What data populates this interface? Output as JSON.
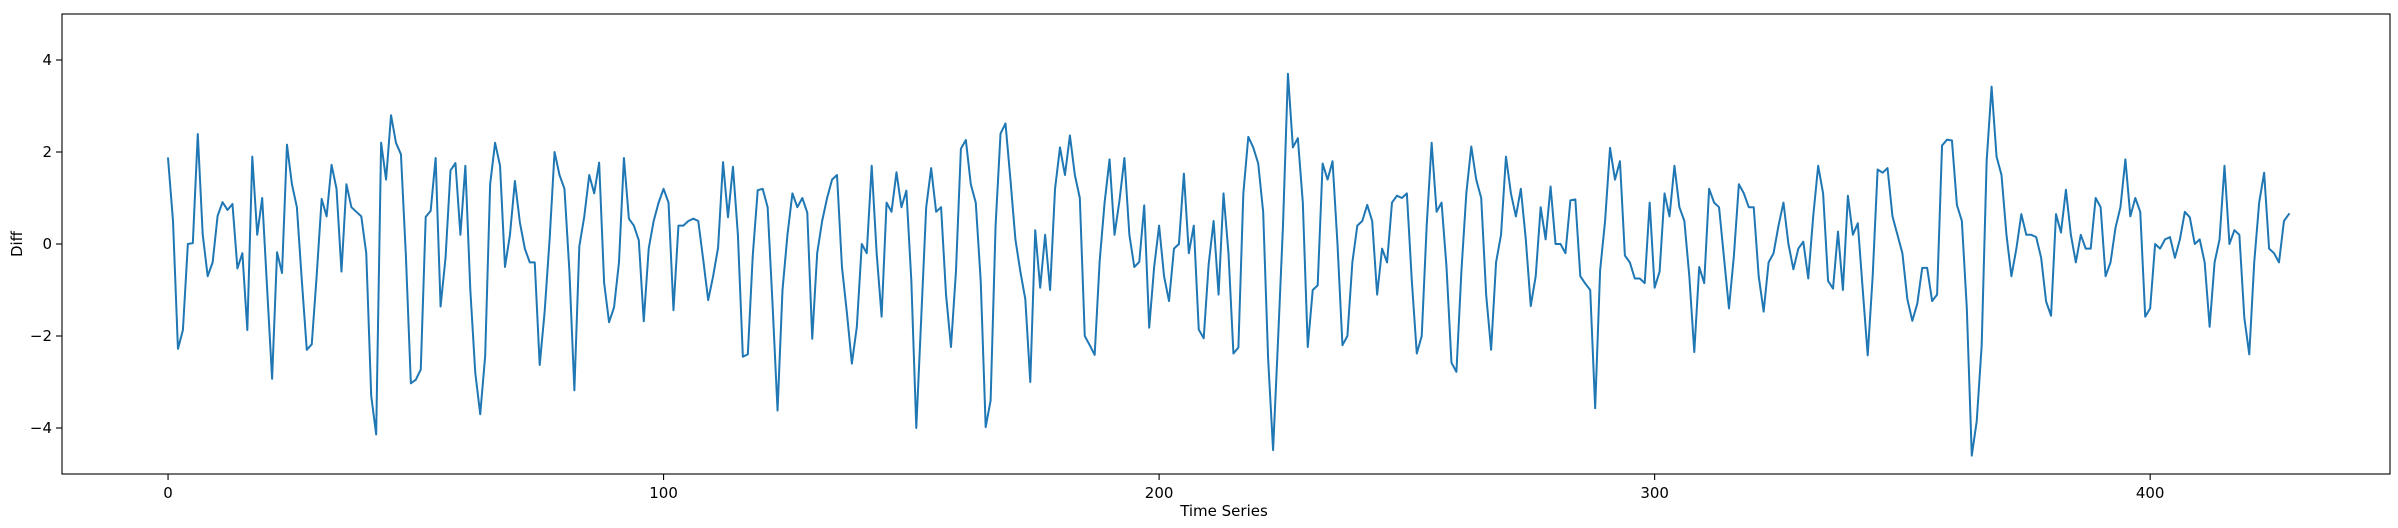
{
  "chart_data": {
    "type": "line",
    "title": "",
    "xlabel": "Time Series",
    "ylabel": "Diff",
    "xlim": [
      -21.4,
      448.4
    ],
    "ylim": [
      -5.0,
      5.0
    ],
    "x_ticks": [
      0,
      100,
      200,
      300,
      400
    ],
    "y_ticks": [
      -4,
      -2,
      0,
      2,
      4
    ],
    "x_tick_labels": [
      "0",
      "100",
      "200",
      "300",
      "400"
    ],
    "y_tick_labels": [
      "−4",
      "−2",
      "0",
      "2",
      "4"
    ],
    "grid": false,
    "line_color": "#1f77b4",
    "series": [
      {
        "x_start": 0,
        "x_step": 1,
        "values": [
          1.86,
          0.5,
          -2.28,
          -1.87,
          0.0,
          0.02,
          2.39,
          0.2,
          -0.7,
          -0.4,
          0.61,
          0.91,
          0.74,
          0.87,
          -0.53,
          -0.2,
          -1.87,
          1.9,
          0.2,
          1.0,
          -0.98,
          -2.93,
          -0.18,
          -0.63,
          2.16,
          1.3,
          0.8,
          -0.8,
          -2.3,
          -2.18,
          -0.68,
          0.98,
          0.6,
          1.72,
          1.2,
          -0.6,
          1.3,
          0.8,
          0.7,
          0.6,
          -0.2,
          -3.3,
          -4.14,
          2.2,
          1.4,
          2.8,
          2.2,
          1.95,
          -0.26,
          -3.03,
          -2.95,
          -2.73,
          0.59,
          0.72,
          1.87,
          -1.36,
          -0.3,
          1.6,
          1.76,
          0.2,
          1.7,
          -1.0,
          -2.8,
          -3.7,
          -2.43,
          1.3,
          2.2,
          1.7,
          -0.5,
          0.2,
          1.37,
          0.47,
          -0.1,
          -0.4,
          -0.4,
          -2.63,
          -1.47,
          0.1,
          2.0,
          1.5,
          1.2,
          -0.6,
          -3.18,
          -0.05,
          0.6,
          1.5,
          1.1,
          1.77,
          -0.84,
          -1.7,
          -1.38,
          -0.4,
          1.87,
          0.55,
          0.4,
          0.08,
          -1.68,
          -0.1,
          0.5,
          0.9,
          1.2,
          0.9,
          -1.44,
          0.4,
          0.4,
          0.5,
          0.55,
          0.5,
          -0.34,
          -1.22,
          -0.7,
          -0.08,
          1.78,
          0.58,
          1.68,
          0.2,
          -2.45,
          -2.4,
          -0.25,
          1.17,
          1.2,
          0.8,
          -1.33,
          -3.62,
          -1.0,
          0.2,
          1.1,
          0.8,
          1.0,
          0.68,
          -2.06,
          -0.2,
          0.5,
          1.0,
          1.4,
          1.5,
          -0.5,
          -1.5,
          -2.6,
          -1.8,
          0.0,
          -0.2,
          1.7,
          -0.2,
          -1.58,
          0.9,
          0.7,
          1.56,
          0.8,
          1.16,
          -0.8,
          -4.0,
          -1.6,
          0.8,
          1.65,
          0.7,
          0.8,
          -1.1,
          -2.24,
          -0.6,
          2.07,
          2.26,
          1.3,
          0.9,
          -0.8,
          -3.98,
          -3.4,
          0.4,
          2.4,
          2.62,
          1.4,
          0.1,
          -0.6,
          -1.2,
          -3.0,
          0.3,
          -0.95,
          0.2,
          -1.0,
          1.2,
          2.1,
          1.5,
          2.36,
          1.5,
          1.0,
          -2.0,
          -2.2,
          -2.41,
          -0.38,
          0.9,
          1.84,
          0.2,
          0.94,
          1.87,
          0.2,
          -0.5,
          -0.39,
          0.84,
          -1.82,
          -0.5,
          0.4,
          -0.7,
          -1.24,
          -0.1,
          0.0,
          1.53,
          -0.2,
          0.4,
          -1.86,
          -2.05,
          -0.44,
          0.5,
          -1.1,
          1.1,
          -0.2,
          -2.38,
          -2.25,
          1.1,
          2.33,
          2.1,
          1.75,
          0.7,
          -2.49,
          -4.48,
          -2.1,
          0.4,
          3.7,
          2.1,
          2.3,
          0.9,
          -2.24,
          -1.0,
          -0.9,
          1.75,
          1.4,
          1.8,
          0.0,
          -2.2,
          -2.0,
          -0.4,
          0.4,
          0.5,
          0.85,
          0.5,
          -1.1,
          -0.1,
          -0.4,
          0.9,
          1.05,
          1.0,
          1.1,
          -0.8,
          -2.38,
          -2.0,
          0.4,
          2.2,
          0.7,
          0.9,
          -0.5,
          -2.58,
          -2.78,
          -0.6,
          1.1,
          2.12,
          1.4,
          1.0,
          -1.1,
          -2.3,
          -0.4,
          0.2,
          1.9,
          1.1,
          0.6,
          1.2,
          0.1,
          -1.35,
          -0.7,
          0.8,
          0.1,
          1.25,
          0.0,
          0.0,
          -0.2,
          0.95,
          0.97,
          -0.7,
          -0.86,
          -1.0,
          -3.57,
          -0.57,
          0.5,
          2.09,
          1.4,
          1.8,
          -0.25,
          -0.4,
          -0.75,
          -0.75,
          -0.85,
          0.9,
          -0.95,
          -0.6,
          1.1,
          0.6,
          1.7,
          0.8,
          0.5,
          -0.7,
          -2.35,
          -0.5,
          -0.85,
          1.2,
          0.9,
          0.8,
          -0.3,
          -1.4,
          -0.25,
          1.3,
          1.1,
          0.8,
          0.8,
          -0.7,
          -1.47,
          -0.4,
          -0.2,
          0.4,
          0.9,
          0.0,
          -0.55,
          -0.1,
          0.05,
          -0.75,
          0.6,
          1.7,
          1.1,
          -0.8,
          -0.97,
          0.27,
          -1.0,
          1.05,
          0.2,
          0.45,
          -1.0,
          -2.42,
          -0.7,
          1.62,
          1.55,
          1.65,
          0.6,
          0.2,
          -0.2,
          -1.2,
          -1.67,
          -1.3,
          -0.52,
          -0.52,
          -1.24,
          -1.1,
          2.14,
          2.27,
          2.25,
          0.85,
          0.5,
          -1.4,
          -4.6,
          -3.85,
          -2.2,
          1.8,
          3.42,
          1.9,
          1.5,
          0.2,
          -0.7,
          -0.1,
          0.65,
          0.2,
          0.2,
          0.15,
          -0.3,
          -1.25,
          -1.56,
          0.65,
          0.25,
          1.18,
          0.2,
          -0.4,
          0.2,
          -0.1,
          -0.1,
          1.0,
          0.8,
          -0.7,
          -0.4,
          0.35,
          0.8,
          1.84,
          0.6,
          1.0,
          0.7,
          -1.58,
          -1.4,
          0.0,
          -0.1,
          0.1,
          0.15,
          -0.3,
          0.1,
          0.7,
          0.58,
          0.0,
          0.1,
          -0.4,
          -1.8,
          -0.4,
          0.1,
          1.7,
          0.0,
          0.3,
          0.2,
          -1.6,
          -2.4,
          -0.4,
          0.9,
          1.55,
          -0.1,
          -0.2,
          -0.4,
          0.5,
          0.65
        ]
      }
    ]
  }
}
